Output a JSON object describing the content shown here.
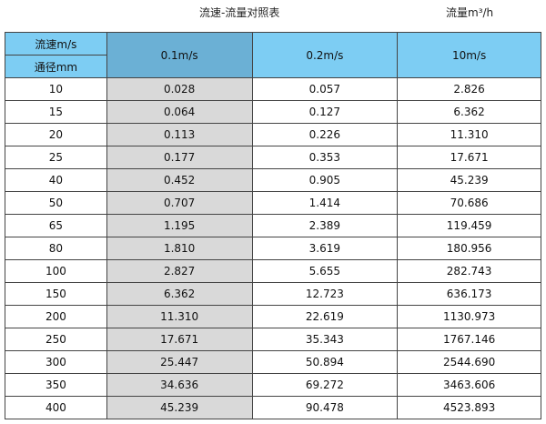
{
  "title": "流速-流量对照表",
  "unit": "流量m³/h",
  "header": {
    "velocity_label": "流速m/s",
    "diameter_label": "通径mm",
    "columns": [
      "0.1m/s",
      "0.2m/s",
      "10m/s"
    ]
  },
  "rows": [
    [
      "10",
      "0.028",
      "0.057",
      "2.826"
    ],
    [
      "15",
      "0.064",
      "0.127",
      "6.362"
    ],
    [
      "20",
      "0.113",
      "0.226",
      "11.310"
    ],
    [
      "25",
      "0.177",
      "0.353",
      "17.671"
    ],
    [
      "40",
      "0.452",
      "0.905",
      "45.239"
    ],
    [
      "50",
      "0.707",
      "1.414",
      "70.686"
    ],
    [
      "65",
      "1.195",
      "2.389",
      "119.459"
    ],
    [
      "80",
      "1.810",
      "3.619",
      "180.956"
    ],
    [
      "100",
      "2.827",
      "5.655",
      "282.743"
    ],
    [
      "150",
      "6.362",
      "12.723",
      "636.173"
    ],
    [
      "200",
      "11.310",
      "22.619",
      "1130.973"
    ],
    [
      "250",
      "17.671",
      "35.343",
      "1767.146"
    ],
    [
      "300",
      "25.447",
      "50.894",
      "2544.690"
    ],
    [
      "350",
      "34.636",
      "69.272",
      "3463.606"
    ],
    [
      "400",
      "45.239",
      "90.478",
      "4523.893"
    ]
  ],
  "colors": {
    "header": "#7dcdf3",
    "selected_header": "#6bb0d5",
    "selected_column": "#d9d9d9"
  }
}
